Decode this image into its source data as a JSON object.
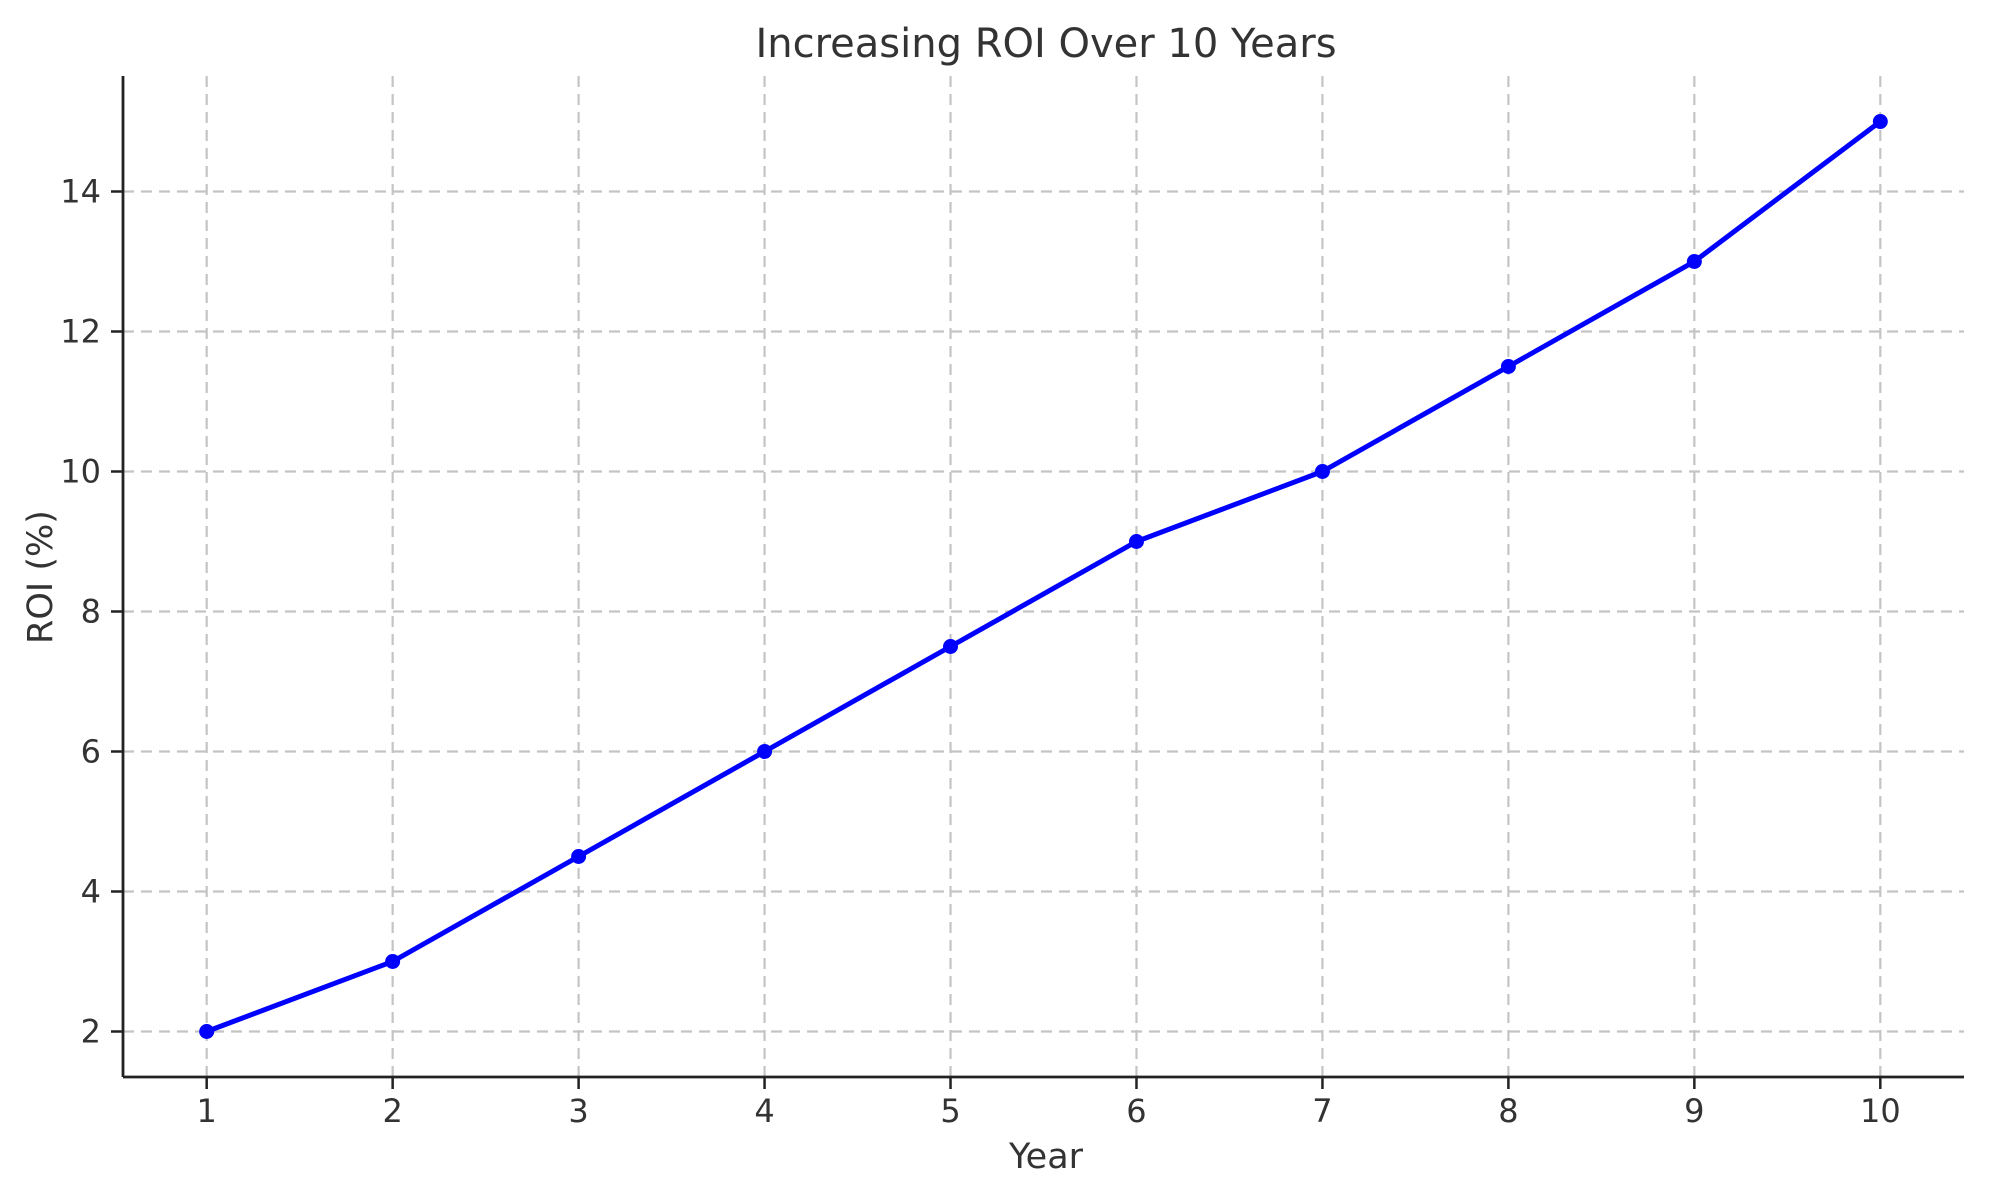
{
  "chart_data": {
    "type": "line",
    "title": "Increasing ROI Over 10 Years",
    "xlabel": "Year",
    "ylabel": "ROI (%)",
    "x": [
      1,
      2,
      3,
      4,
      5,
      6,
      7,
      8,
      9,
      10
    ],
    "values": [
      2.0,
      3.0,
      4.5,
      6.0,
      7.5,
      9.0,
      10.0,
      11.5,
      13.0,
      15.0
    ],
    "xticks": [
      1,
      2,
      3,
      4,
      5,
      6,
      7,
      8,
      9,
      10
    ],
    "yticks": [
      2,
      4,
      6,
      8,
      10,
      12,
      14
    ],
    "xlim": [
      0.55,
      10.45
    ],
    "ylim": [
      1.35,
      15.65
    ],
    "grid": "dashed",
    "legend": "none",
    "colors": {
      "line": "#0000ff",
      "marker": "#0000ff",
      "grid": "#c4c4c4",
      "spine": "#222222",
      "text": "#333333",
      "background": "#ffffff"
    }
  }
}
